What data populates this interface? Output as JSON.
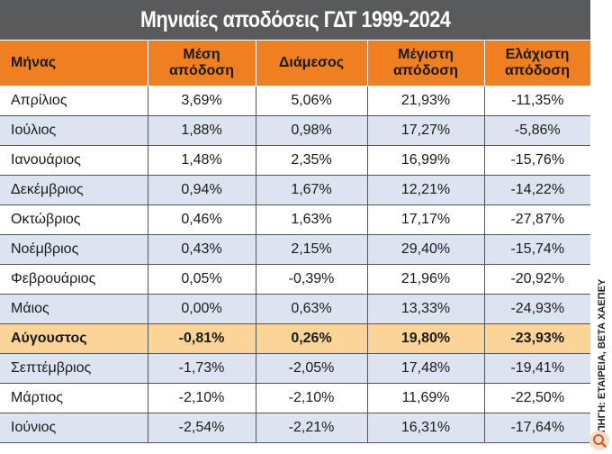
{
  "title": "Μηνιαίες αποδόσεις ΓΔΤ 1999-2024",
  "headers": [
    "Μήνας",
    "Μέση απόδοση",
    "Διάμεσος",
    "Μέγιστη απόδοση",
    "Ελάχιστη απόδοση"
  ],
  "rows": [
    {
      "month": "Απρίλιος",
      "mean": "3,69%",
      "median": "5,06%",
      "max": "21,93%",
      "min": "-11,35%",
      "highlight": false
    },
    {
      "month": "Ιούλιος",
      "mean": "1,88%",
      "median": "0,98%",
      "max": "17,27%",
      "min": "-5,86%",
      "highlight": false
    },
    {
      "month": "Ιανουάριος",
      "mean": "1,48%",
      "median": "2,35%",
      "max": "16,99%",
      "min": "-15,76%",
      "highlight": false
    },
    {
      "month": "Δεκέμβριος",
      "mean": "0,94%",
      "median": "1,67%",
      "max": "12,21%",
      "min": "-14,22%",
      "highlight": false
    },
    {
      "month": "Οκτώβριος",
      "mean": "0,46%",
      "median": "1,63%",
      "max": "17,17%",
      "min": "-27,87%",
      "highlight": false
    },
    {
      "month": "Νοέμβριος",
      "mean": "0,43%",
      "median": "2,15%",
      "max": "29,40%",
      "min": "-15,74%",
      "highlight": false
    },
    {
      "month": "Φεβρουάριος",
      "mean": "0,05%",
      "median": "-0,39%",
      "max": "21,96%",
      "min": "-20,92%",
      "highlight": false
    },
    {
      "month": "Μάιος",
      "mean": "0,00%",
      "median": "0,63%",
      "max": "13,33%",
      "min": "-24,93%",
      "highlight": false
    },
    {
      "month": "Αύγουστος",
      "mean": "-0,81%",
      "median": "0,26%",
      "max": "19,80%",
      "min": "-23,93%",
      "highlight": true
    },
    {
      "month": "Σεπτέμβριος",
      "mean": "-1,73%",
      "median": "-2,05%",
      "max": "17,48%",
      "min": "-19,41%",
      "highlight": false
    },
    {
      "month": "Μάρτιος",
      "mean": "-2,10%",
      "median": "-2,10%",
      "max": "11,69%",
      "min": "-22,50%",
      "highlight": false
    },
    {
      "month": "Ιούνιος",
      "mean": "-2,54%",
      "median": "-2,21%",
      "max": "16,31%",
      "min": "-17,64%",
      "highlight": false
    }
  ],
  "source": "ΠΗΓΗ: ΕΤΑΙΡΕΙΑ, ΒΕΤΑ ΧΑΕΠΕΥ",
  "colors": {
    "title_bg": "#595a5c",
    "header_bg": "#f07f22",
    "row_alt_bg": "#dde4f1",
    "highlight_bg": "#fbd49a"
  }
}
